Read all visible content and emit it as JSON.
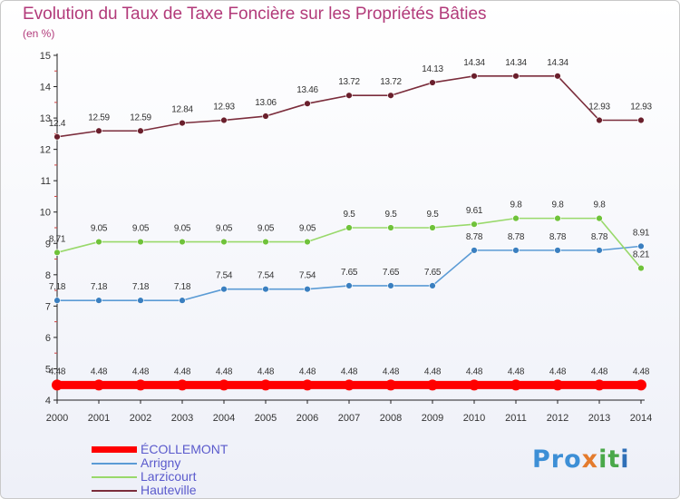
{
  "header": {
    "title": "Evolution du Taux de Taxe Foncière sur les Propriétés Bâties",
    "subtitle": "(en %)"
  },
  "logo": {
    "text": "Proxiti",
    "parts": [
      "Pro",
      "x",
      "it",
      "i"
    ]
  },
  "chart_data": {
    "type": "line",
    "title": "Evolution du Taux de Taxe Foncière sur les Propriétés Bâties",
    "subtitle": "(en %)",
    "xlabel": "",
    "ylabel": "",
    "x": [
      2000,
      2001,
      2002,
      2003,
      2004,
      2005,
      2006,
      2007,
      2008,
      2009,
      2010,
      2011,
      2012,
      2013,
      2014
    ],
    "ylim": [
      4,
      15
    ],
    "yticks": [
      4,
      5,
      6,
      7,
      8,
      9,
      10,
      11,
      12,
      13,
      14,
      15
    ],
    "grid": false,
    "legend_position": "bottom-left",
    "series": [
      {
        "name": "ÉCOLLEMONT",
        "color": "#ff0000",
        "marker_fill": "#ff0000",
        "width": "thick",
        "values": [
          4.48,
          4.48,
          4.48,
          4.48,
          4.48,
          4.48,
          4.48,
          4.48,
          4.48,
          4.48,
          4.48,
          4.48,
          4.48,
          4.48,
          4.48
        ],
        "labels": [
          "4.48",
          "4.48",
          "4.48",
          "4.48",
          "4.48",
          "4.48",
          "4.48",
          "4.48",
          "4.48",
          "4.48",
          "4.48",
          "4.48",
          "4.48",
          "4.48",
          "4.48"
        ]
      },
      {
        "name": "Arrigny",
        "color": "#5b9bd5",
        "marker_fill": "#3a7fc0",
        "width": "thin",
        "values": [
          7.18,
          7.18,
          7.18,
          7.18,
          7.54,
          7.54,
          7.54,
          7.65,
          7.65,
          7.65,
          8.78,
          8.78,
          8.78,
          8.78,
          8.91
        ],
        "labels": [
          "7.18",
          "7.18",
          "7.18",
          "7.18",
          "7.54",
          "7.54",
          "7.54",
          "7.65",
          "7.65",
          "7.65",
          "8.78",
          "8.78",
          "8.78",
          "8.78",
          "8.91"
        ]
      },
      {
        "name": "Larzicourt",
        "color": "#99d96b",
        "marker_fill": "#6fc23a",
        "width": "thin",
        "values": [
          8.71,
          9.05,
          9.05,
          9.05,
          9.05,
          9.05,
          9.05,
          9.5,
          9.5,
          9.5,
          9.61,
          9.8,
          9.8,
          9.8,
          8.21
        ],
        "labels": [
          "8.71",
          "9.05",
          "9.05",
          "9.05",
          "9.05",
          "9.05",
          "9.05",
          "9.5",
          "9.5",
          "9.5",
          "9.61",
          "9.8",
          "9.8",
          "9.8",
          "8.21"
        ]
      },
      {
        "name": "Hauteville",
        "color": "#7b2d3c",
        "marker_fill": "#6a1f2c",
        "width": "thin",
        "values": [
          12.4,
          12.59,
          12.59,
          12.84,
          12.93,
          13.06,
          13.46,
          13.72,
          13.72,
          14.13,
          14.34,
          14.34,
          14.34,
          12.93,
          12.93
        ],
        "labels": [
          "12.4",
          "12.59",
          "12.59",
          "12.84",
          "12.93",
          "13.06",
          "13.46",
          "13.72",
          "13.72",
          "14.13",
          "14.34",
          "14.34",
          "14.34",
          "12.93",
          "12.93"
        ]
      }
    ]
  }
}
